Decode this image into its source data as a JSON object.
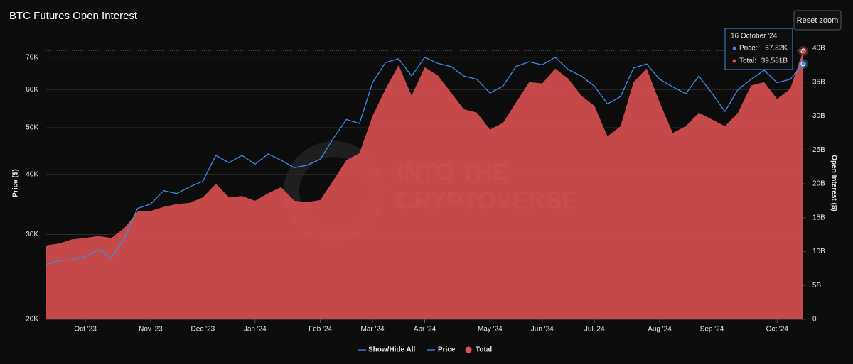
{
  "chart_data": {
    "type": "line-area",
    "title": "BTC Futures Open Interest",
    "ylabel": "Price ($)",
    "y2label": "Open Interest ($)",
    "watermark": [
      "INTO THE",
      "CRYPTOVERSE"
    ],
    "reset_button": "Reset zoom",
    "legend_toggle": "Show/Hide All",
    "categories": [
      null,
      null,
      null,
      "Oct '23",
      null,
      null,
      null,
      null,
      "Nov '23",
      null,
      null,
      null,
      "Dec '23",
      null,
      null,
      null,
      "Jan '24",
      null,
      null,
      null,
      null,
      "Feb '24",
      null,
      null,
      null,
      "Mar '24",
      null,
      null,
      null,
      "Apr '24",
      null,
      null,
      null,
      null,
      "May '24",
      null,
      null,
      null,
      "Jun '24",
      null,
      null,
      null,
      "Jul '24",
      null,
      null,
      null,
      null,
      "Aug '24",
      null,
      null,
      null,
      "Sep '24",
      null,
      null,
      null,
      null,
      "Oct '24",
      null,
      null
    ],
    "series": [
      {
        "name": "Price",
        "kind": "line",
        "color": "#3d8bea",
        "axis": "y",
        "values": [
          26000,
          26500,
          26600,
          27000,
          27900,
          26800,
          29500,
          34000,
          34700,
          37000,
          36500,
          37700,
          38700,
          43800,
          42300,
          43800,
          42000,
          44100,
          42800,
          41300,
          41800,
          43000,
          47500,
          52000,
          51000,
          62000,
          68300,
          69500,
          64000,
          70000,
          68000,
          67000,
          64000,
          63000,
          59000,
          61000,
          67000,
          68500,
          67500,
          70000,
          66000,
          64000,
          61000,
          56000,
          58000,
          66500,
          67800,
          63000,
          60800,
          58800,
          64000,
          59000,
          54000,
          60000,
          63000,
          65800,
          62000,
          63000,
          67820
        ]
      },
      {
        "name": "Total",
        "kind": "area",
        "color": "#e05252",
        "axis": "y2",
        "values": [
          10900000000.0,
          11200000000.0,
          11800000000.0,
          12000000000.0,
          12300000000.0,
          12000000000.0,
          13500000000.0,
          15900000000.0,
          16000000000.0,
          16600000000.0,
          17000000000.0,
          17200000000.0,
          18000000000.0,
          20000000000.0,
          18000000000.0,
          18200000000.0,
          17500000000.0,
          18600000000.0,
          19500000000.0,
          17500000000.0,
          17300000000.0,
          17600000000.0,
          20500000000.0,
          23500000000.0,
          24500000000.0,
          30000000000.0,
          34000000000.0,
          37500000000.0,
          33000000000.0,
          37200000000.0,
          36000000000.0,
          33500000000.0,
          31000000000.0,
          30500000000.0,
          28000000000.0,
          29000000000.0,
          32000000000.0,
          35000000000.0,
          34800000000.0,
          37000000000.0,
          35500000000.0,
          33000000000.0,
          31500000000.0,
          27000000000.0,
          28500000000.0,
          35000000000.0,
          37000000000.0,
          32000000000.0,
          27500000000.0,
          28500000000.0,
          30500000000.0,
          29500000000.0,
          28500000000.0,
          30500000000.0,
          34500000000.0,
          35000000000.0,
          32500000000.0,
          34000000000.0,
          39581000000.0
        ]
      }
    ],
    "yscale": "log",
    "ylim": [
      20000,
      73100
    ],
    "yticks": [
      {
        "value": 20000,
        "label": "20K"
      },
      {
        "value": 30000,
        "label": "30K"
      },
      {
        "value": 40000,
        "label": "40K"
      },
      {
        "value": 50000,
        "label": "50K"
      },
      {
        "value": 60000,
        "label": "60K"
      },
      {
        "value": 70000,
        "label": "70K"
      }
    ],
    "y2lim": [
      0,
      40000000000
    ],
    "y2ticks": [
      0,
      {
        "value": 5000000000,
        "label": "5B"
      },
      {
        "value": 10000000000,
        "label": "10B"
      },
      {
        "value": 15000000000,
        "label": "15B"
      },
      {
        "value": 20000000000,
        "label": "20B"
      },
      {
        "value": 25000000000,
        "label": "25B"
      },
      {
        "value": 30000000000,
        "label": "30B"
      },
      {
        "value": 35000000000,
        "label": "35B"
      },
      {
        "value": 40000000000,
        "label": "40B"
      }
    ],
    "grid": true,
    "tooltip": {
      "title": "16 October '24",
      "items": [
        {
          "label": "Price:",
          "value": "67.82K"
        },
        {
          "label": "Total:",
          "value": "39.581B"
        }
      ]
    }
  }
}
